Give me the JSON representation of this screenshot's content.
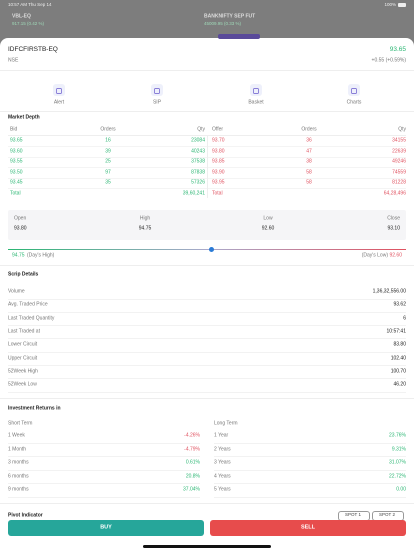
{
  "status_bar": {
    "time": "10:57 AM  Thu Sep 14",
    "battery": "100%"
  },
  "background": {
    "items": [
      {
        "name": "VBL-EQ",
        "quote": "917.15 (0.42 %)"
      },
      {
        "name": "BANKNIFTY SEP FUT",
        "quote": "45009.95 (0.33 %)"
      }
    ]
  },
  "header": {
    "symbol": "IDFCFIRSTB-EQ",
    "exchange": "NSE",
    "price": "93.65",
    "change": "+0.55 (+0.59%)"
  },
  "actions": [
    "Alert",
    "SIP",
    "Basket",
    "Charts"
  ],
  "market_depth": {
    "title": "Market Depth",
    "columns": [
      "Bid",
      "Orders",
      "Qty",
      "Offer",
      "Orders",
      "Qty"
    ],
    "bids": [
      [
        "93.65",
        "16",
        "23084"
      ],
      [
        "93.60",
        "39",
        "40243"
      ],
      [
        "93.55",
        "25",
        "37538"
      ],
      [
        "93.50",
        "97",
        "87838"
      ],
      [
        "93.45",
        "35",
        "57326"
      ]
    ],
    "offers": [
      [
        "93.70",
        "36",
        "34155"
      ],
      [
        "93.80",
        "47",
        "22639"
      ],
      [
        "93.85",
        "38",
        "49246"
      ],
      [
        "93.90",
        "58",
        "74559"
      ],
      [
        "93.95",
        "58",
        "81228"
      ]
    ],
    "total_label": "Total",
    "bid_total": "39,60,241",
    "offer_total": "64,28,496"
  },
  "ohlc": {
    "labels": [
      "Open",
      "High",
      "Low",
      "Close"
    ],
    "values": [
      "93.80",
      "94.75",
      "92.60",
      "93.10"
    ]
  },
  "range": {
    "high": "94.75",
    "high_label": "(Day's High)",
    "low_label": "(Day's Low)",
    "low": "92.60"
  },
  "scrip": {
    "title": "Scrip Details",
    "rows": [
      [
        "Volume",
        "1,36,32,556.00"
      ],
      [
        "Avg. Traded Price",
        "93.62"
      ],
      [
        "Last Traded Quantity",
        "6"
      ],
      [
        "Last Traded at",
        "10:57:41"
      ],
      [
        "Lower Circuit",
        "83.80"
      ],
      [
        "Upper Circuit",
        "102.40"
      ],
      [
        "52Week High",
        "100.70"
      ],
      [
        "52Week Low",
        "46.20"
      ]
    ]
  },
  "returns": {
    "title": "Investment Returns in",
    "short_title": "Short Term",
    "long_title": "Long Term",
    "short": [
      [
        "1 Week",
        "-4.26%"
      ],
      [
        "1 Month",
        "-4.79%"
      ],
      [
        "3 months",
        "0.61%"
      ],
      [
        "6 months",
        "20.8%"
      ],
      [
        "9 months",
        "37.04%"
      ]
    ],
    "long": [
      [
        "1 Year",
        "23.76%"
      ],
      [
        "2 Years",
        "9.31%"
      ],
      [
        "3 Years",
        "31.07%"
      ],
      [
        "4 Years",
        "22.72%"
      ],
      [
        "5 Years",
        "0.00"
      ]
    ]
  },
  "pivot": {
    "title": "Pivot Indicator",
    "buttons": [
      "SPOT 1",
      "SPOT 2"
    ]
  },
  "buttons": {
    "buy": "BUY",
    "sell": "SELL"
  }
}
